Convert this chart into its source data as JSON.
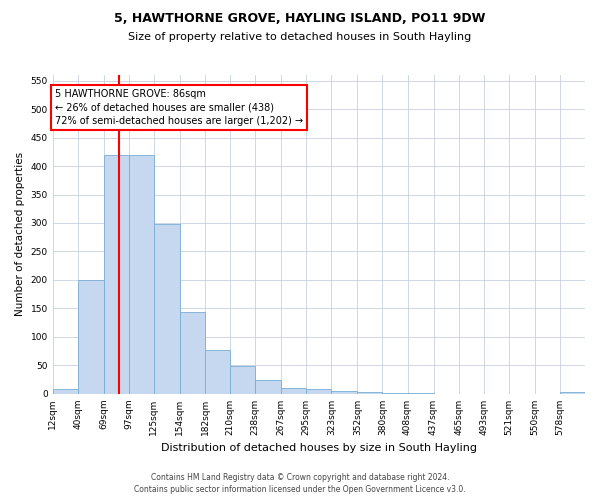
{
  "title": "5, HAWTHORNE GROVE, HAYLING ISLAND, PO11 9DW",
  "subtitle": "Size of property relative to detached houses in South Hayling",
  "xlabel": "Distribution of detached houses by size in South Hayling",
  "ylabel": "Number of detached properties",
  "bar_color": "#c5d8f0",
  "bar_edge_color": "#7aadd4",
  "background_color": "#ffffff",
  "grid_color": "#c8d0e0",
  "vline_x": 86,
  "vline_color": "red",
  "categories": [
    "12sqm",
    "40sqm",
    "69sqm",
    "97sqm",
    "125sqm",
    "154sqm",
    "182sqm",
    "210sqm",
    "238sqm",
    "267sqm",
    "295sqm",
    "323sqm",
    "352sqm",
    "380sqm",
    "408sqm",
    "437sqm",
    "465sqm",
    "493sqm",
    "521sqm",
    "550sqm",
    "578sqm"
  ],
  "bin_edges": [
    12,
    40,
    69,
    97,
    125,
    154,
    182,
    210,
    238,
    267,
    295,
    323,
    352,
    380,
    408,
    437,
    465,
    493,
    521,
    550,
    578,
    606
  ],
  "values": [
    8,
    200,
    420,
    420,
    298,
    143,
    77,
    49,
    24,
    11,
    8,
    5,
    3,
    1,
    1,
    0,
    0,
    0,
    0,
    0,
    3
  ],
  "ylim": [
    0,
    560
  ],
  "yticks": [
    0,
    50,
    100,
    150,
    200,
    250,
    300,
    350,
    400,
    450,
    500,
    550
  ],
  "annotation_text": "5 HAWTHORNE GROVE: 86sqm\n← 26% of detached houses are smaller (438)\n72% of semi-detached houses are larger (1,202) →",
  "annotation_box_color": "white",
  "annotation_box_edge": "red",
  "footer1": "Contains HM Land Registry data © Crown copyright and database right 2024.",
  "footer2": "Contains public sector information licensed under the Open Government Licence v3.0.",
  "title_fontsize": 9,
  "subtitle_fontsize": 8,
  "ylabel_fontsize": 7.5,
  "xlabel_fontsize": 8,
  "tick_fontsize": 6.5,
  "annotation_fontsize": 7,
  "footer_fontsize": 5.5
}
